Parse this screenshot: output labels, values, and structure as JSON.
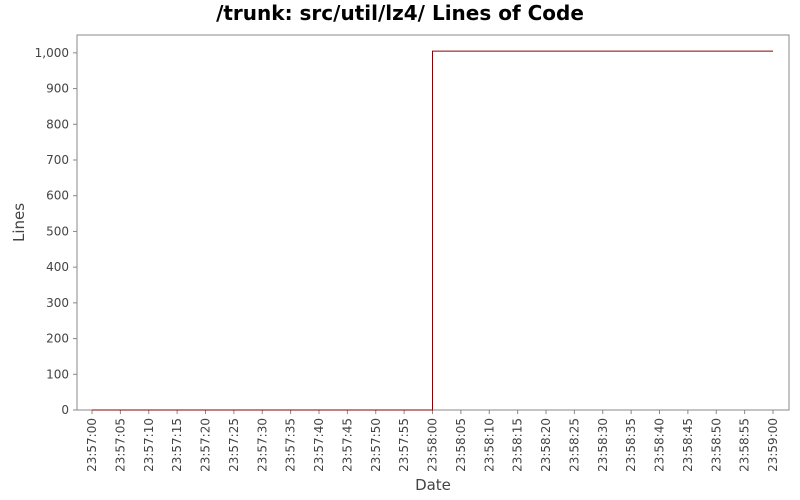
{
  "chart_data": {
    "type": "line",
    "step": true,
    "title": "/trunk: src/util/lz4/ Lines of Code",
    "xlabel": "Date",
    "ylabel": "Lines",
    "x_tick_labels": [
      "23:57:00",
      "23:57:05",
      "23:57:10",
      "23:57:15",
      "23:57:20",
      "23:57:25",
      "23:57:30",
      "23:57:35",
      "23:57:40",
      "23:57:45",
      "23:57:50",
      "23:57:55",
      "23:58:00",
      "23:58:05",
      "23:58:10",
      "23:58:15",
      "23:58:20",
      "23:58:25",
      "23:58:30",
      "23:58:35",
      "23:58:40",
      "23:58:45",
      "23:58:50",
      "23:58:55",
      "23:59:00"
    ],
    "y_ticks": [
      0,
      100,
      200,
      300,
      400,
      500,
      600,
      700,
      800,
      900,
      1000
    ],
    "y_tick_labels": [
      "0",
      "100",
      "200",
      "300",
      "400",
      "500",
      "600",
      "700",
      "800",
      "900",
      "1,000"
    ],
    "ylim": [
      0,
      1050
    ],
    "xlim": [
      "23:57:00",
      "23:59:00"
    ],
    "series": [
      {
        "color": "#8b0000",
        "points": [
          {
            "x": "23:57:00",
            "y": 0
          },
          {
            "x": "23:58:00",
            "y": 0
          },
          {
            "x": "23:58:00",
            "y": 1005
          },
          {
            "x": "23:59:00",
            "y": 1005
          }
        ]
      }
    ],
    "grid": false,
    "legend": "none"
  }
}
